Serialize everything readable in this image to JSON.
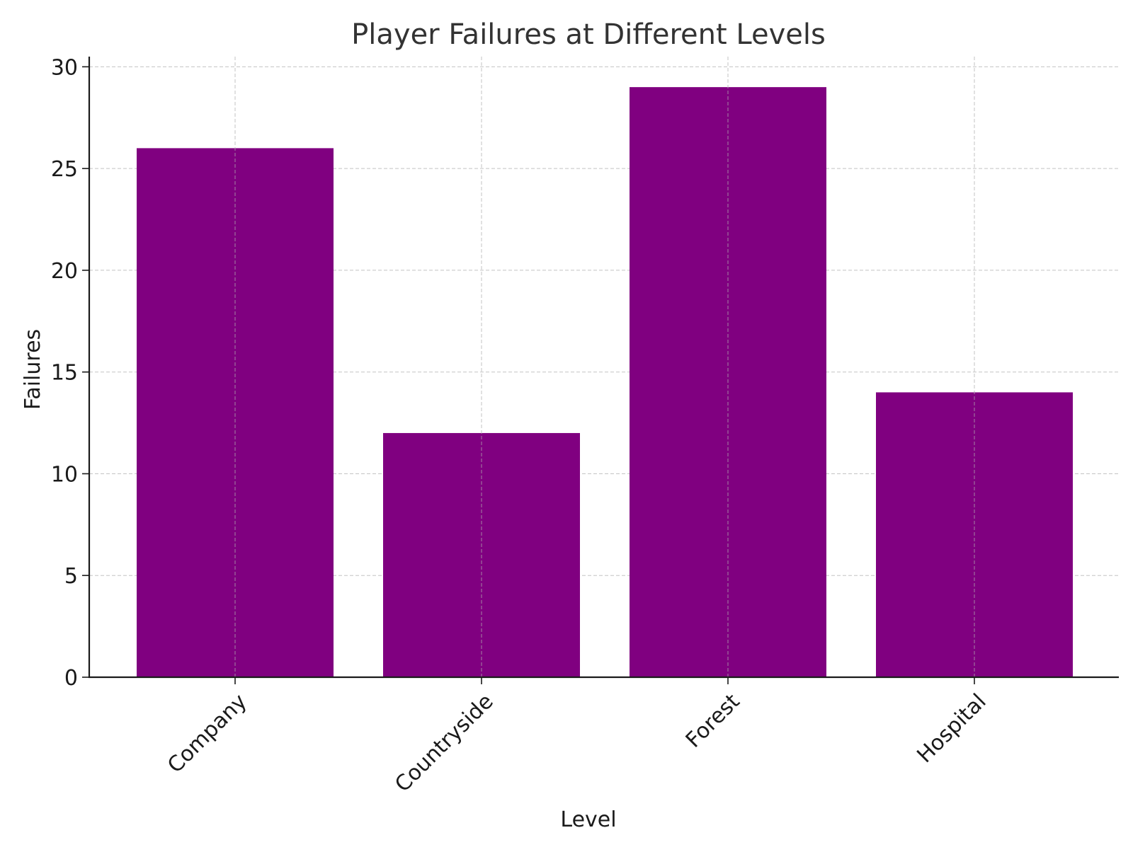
{
  "chart_data": {
    "type": "bar",
    "title": "Player Failures at Different Levels",
    "xlabel": "Level",
    "ylabel": "Failures",
    "categories": [
      "Company",
      "Countryside",
      "Forest",
      "Hospital"
    ],
    "values": [
      26,
      12,
      29,
      14
    ],
    "ylim": [
      0,
      30.5
    ],
    "yticks": [
      0,
      5,
      10,
      15,
      20,
      25,
      30
    ],
    "grid": true,
    "bar_color": "#800080",
    "x_tick_rotation_deg": 45
  }
}
